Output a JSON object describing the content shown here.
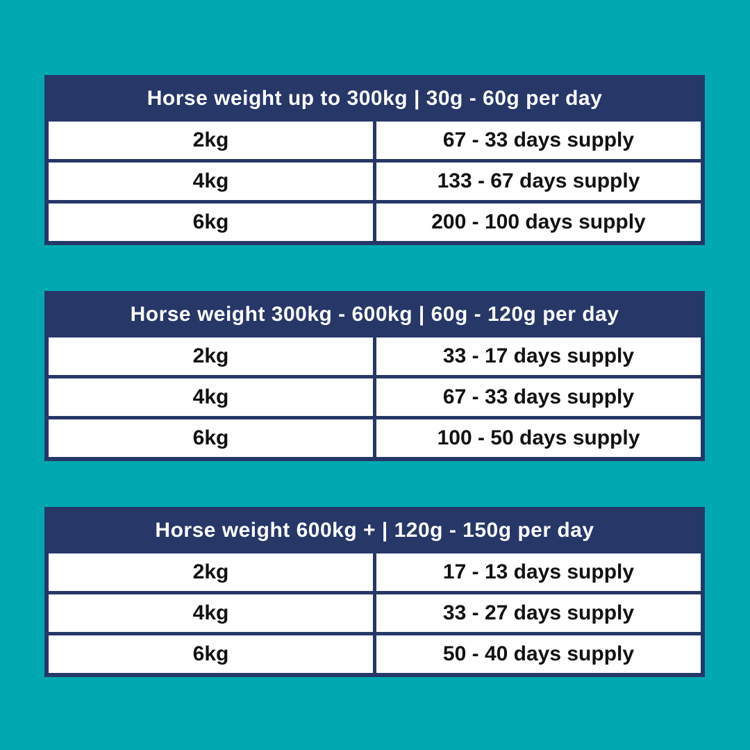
{
  "colors": {
    "background": "#00A9B2",
    "navy": "#263768",
    "cell_bg": "#FFFFFF",
    "header_text": "#FFFFFF",
    "cell_text": "#111111"
  },
  "chart_data": [
    {
      "type": "table",
      "title": "Horse weight up to 300kg | 30g - 60g per day",
      "rows": [
        [
          "2kg",
          "67 - 33 days supply"
        ],
        [
          "4kg",
          "133 - 67 days supply"
        ],
        [
          "6kg",
          "200 - 100 days supply"
        ]
      ]
    },
    {
      "type": "table",
      "title": "Horse weight 300kg - 600kg | 60g - 120g per day",
      "rows": [
        [
          "2kg",
          "33 - 17 days supply"
        ],
        [
          "4kg",
          "67 - 33 days supply"
        ],
        [
          "6kg",
          "100 - 50 days supply"
        ]
      ]
    },
    {
      "type": "table",
      "title": "Horse weight 600kg + | 120g - 150g per day",
      "rows": [
        [
          "2kg",
          "17 - 13 days supply"
        ],
        [
          "4kg",
          "33 - 27 days supply"
        ],
        [
          "6kg",
          "50 - 40 days supply"
        ]
      ]
    }
  ]
}
